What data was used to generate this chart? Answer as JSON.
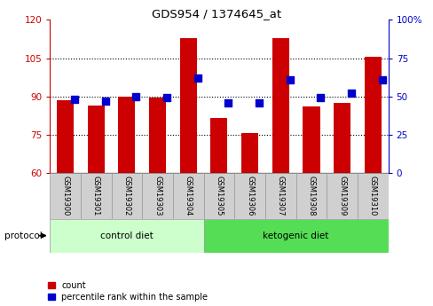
{
  "title": "GDS954 / 1374645_at",
  "samples": [
    "GSM19300",
    "GSM19301",
    "GSM19302",
    "GSM19303",
    "GSM19304",
    "GSM19305",
    "GSM19306",
    "GSM19307",
    "GSM19308",
    "GSM19309",
    "GSM19310"
  ],
  "count_values": [
    88.5,
    86.5,
    90.0,
    89.5,
    113.0,
    81.5,
    75.5,
    113.0,
    86.0,
    87.5,
    105.5
  ],
  "percentile_values": [
    48,
    47,
    50,
    49,
    62,
    46,
    46,
    61,
    49,
    52,
    61
  ],
  "ylim_left": [
    60,
    120
  ],
  "ylim_right": [
    0,
    100
  ],
  "yticks_left": [
    60,
    75,
    90,
    105,
    120
  ],
  "yticks_right": [
    0,
    25,
    50,
    75,
    100
  ],
  "ytick_labels_left": [
    "60",
    "75",
    "90",
    "105",
    "120"
  ],
  "ytick_labels_right": [
    "0",
    "25",
    "50",
    "75",
    "100%"
  ],
  "groups": [
    {
      "label": "control diet",
      "start": 0,
      "end": 5,
      "color": "#ccffcc"
    },
    {
      "label": "ketogenic diet",
      "start": 5,
      "end": 11,
      "color": "#55dd55"
    }
  ],
  "protocol_label": "protocol",
  "bar_color": "#cc0000",
  "dot_color": "#0000cc",
  "bg_color": "#ffffff",
  "left_axis_color": "#cc0000",
  "right_axis_color": "#0000cc",
  "legend_count_label": "count",
  "legend_pct_label": "percentile rank within the sample",
  "bar_width": 0.55,
  "dot_size": 28,
  "gridlines": [
    75,
    90,
    105
  ]
}
